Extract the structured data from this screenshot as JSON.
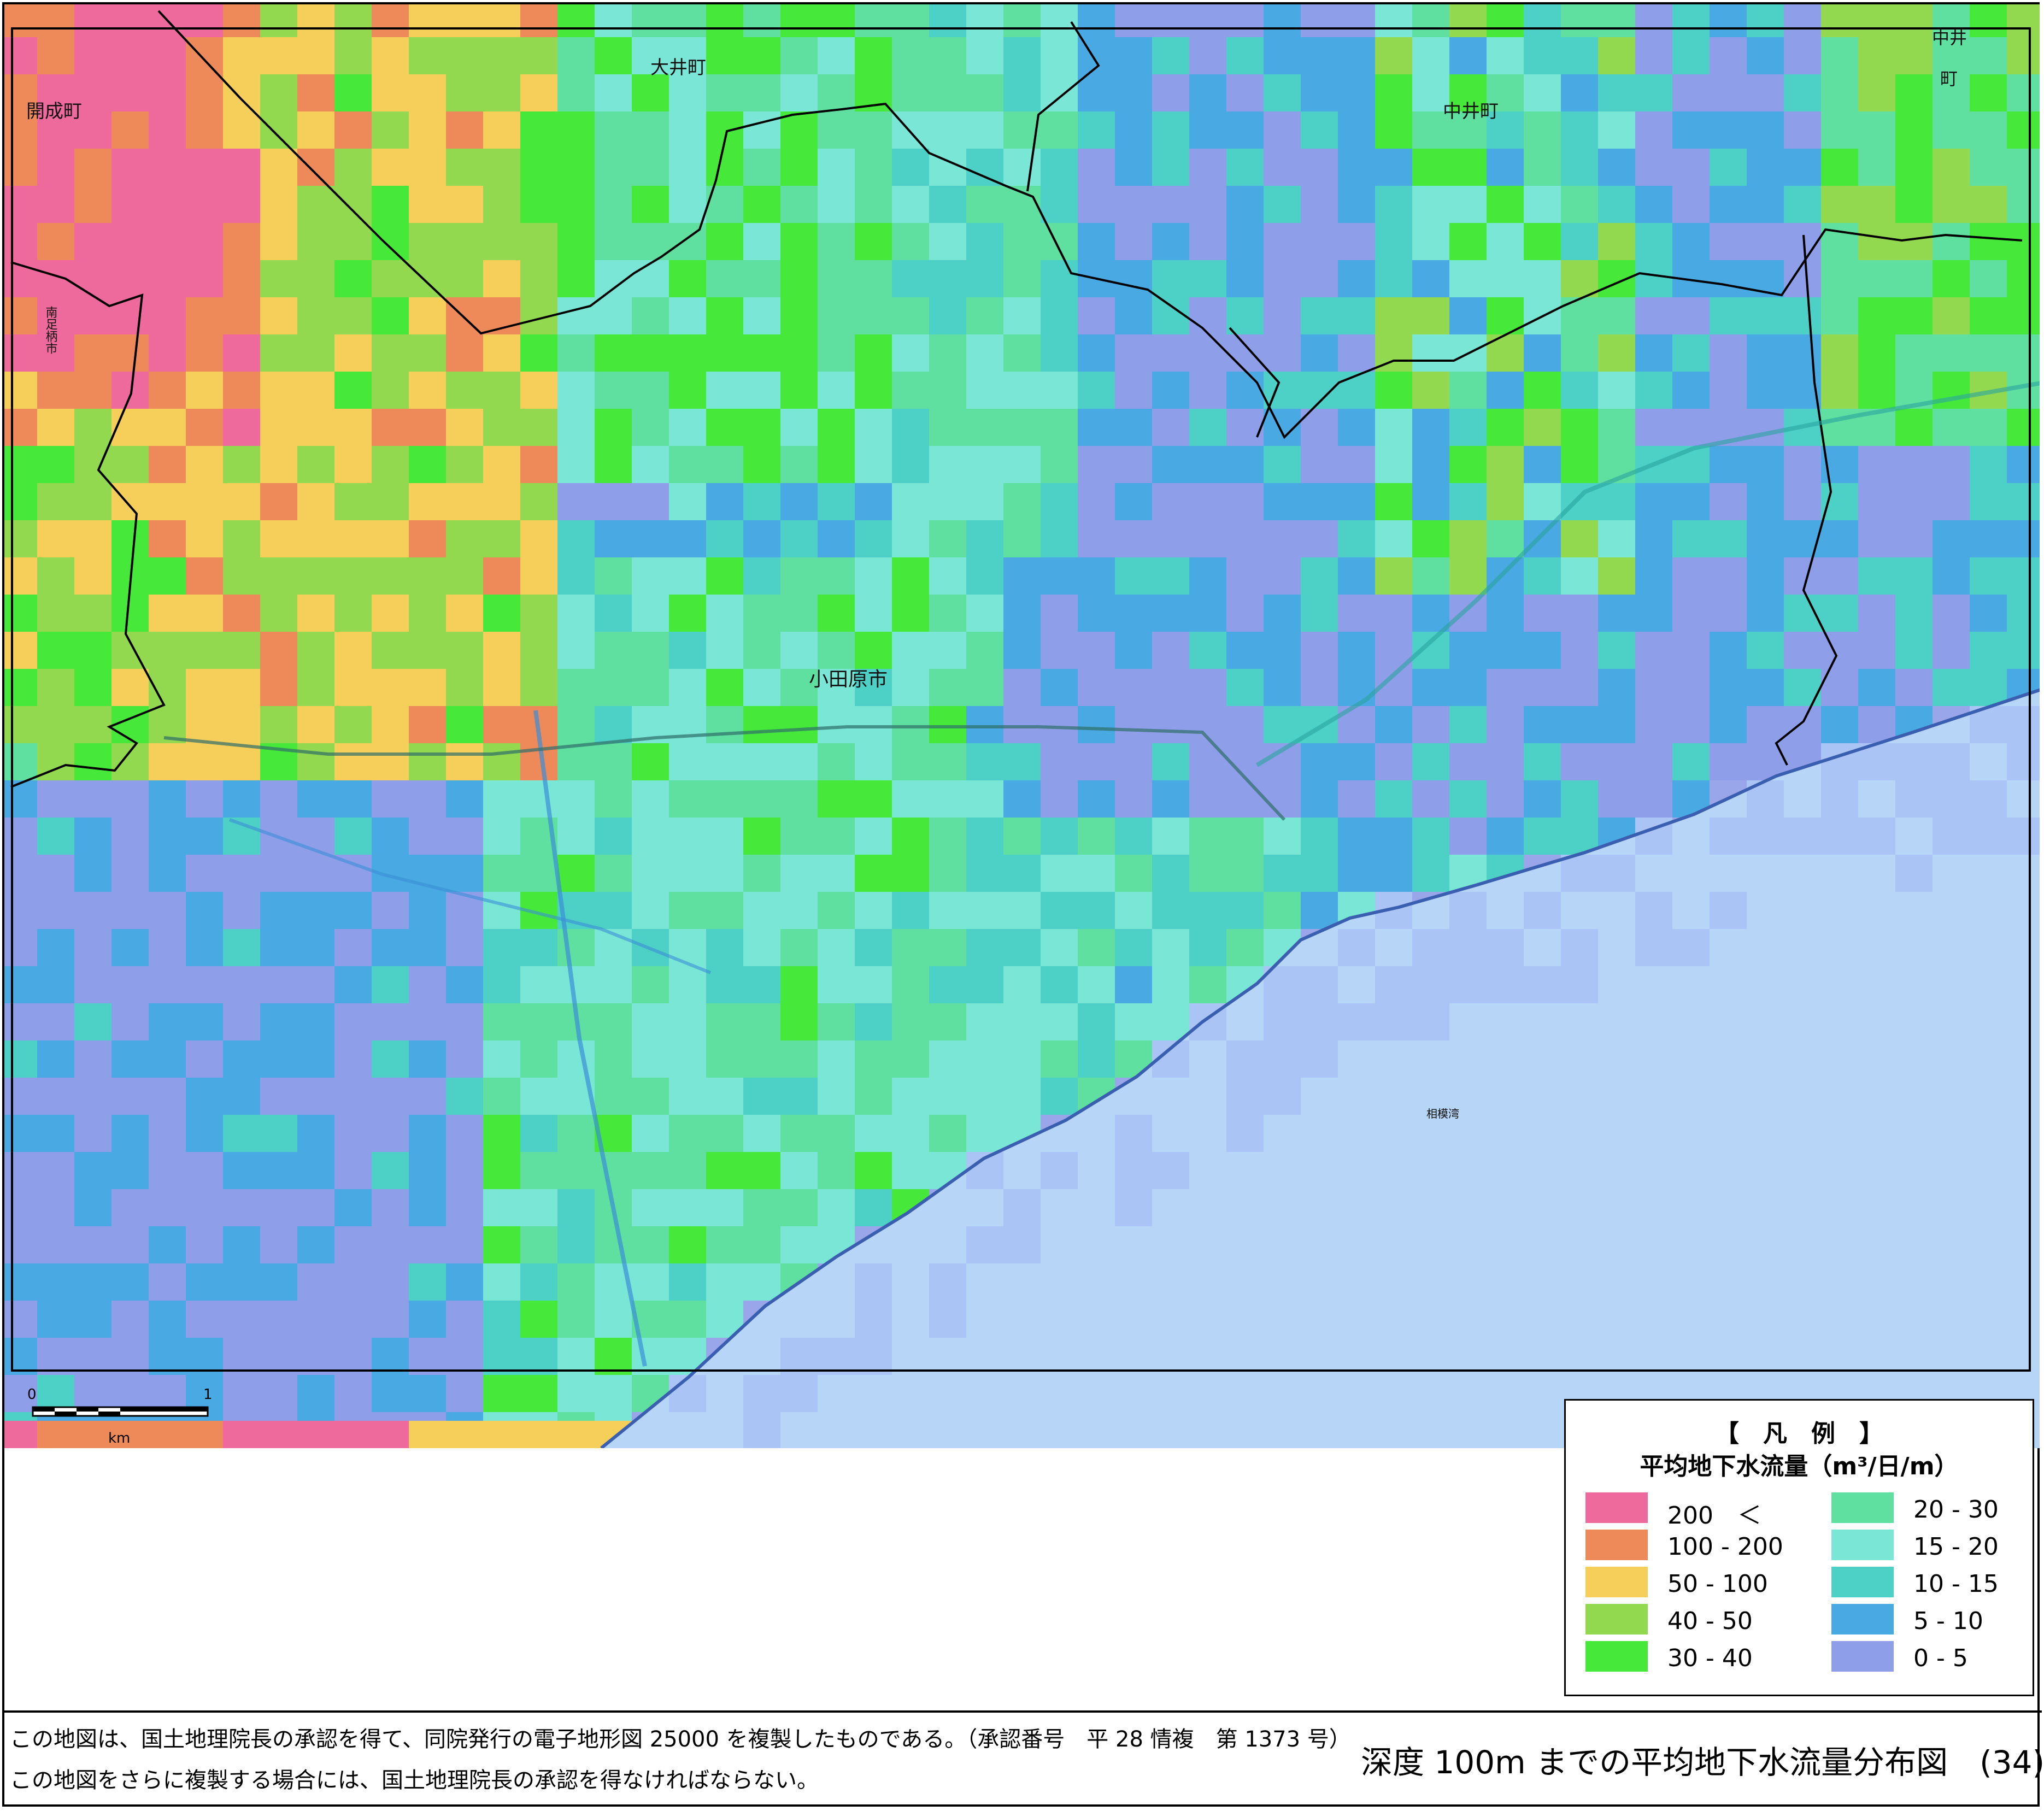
{
  "map": {
    "places": [
      "大井町",
      "中井町",
      "開成町",
      "小田原市",
      "南足柄市",
      "相模湾",
      "中井",
      "町"
    ],
    "scale_bar": {
      "start": "0",
      "end": "1",
      "unit": "km"
    }
  },
  "legend": {
    "title": "【　凡　例　】",
    "subtitle": "平均地下水流量（m³/日/m）",
    "classes": [
      {
        "label": "200　＜",
        "color": "#ef6a9c"
      },
      {
        "label": "100 - 200",
        "color": "#ee8a5a"
      },
      {
        "label": "50 - 100",
        "color": "#f6cf5a"
      },
      {
        "label": "40 - 50",
        "color": "#93d94f"
      },
      {
        "label": "30 - 40",
        "color": "#46e93a"
      },
      {
        "label": "20 - 30",
        "color": "#5fe0a0"
      },
      {
        "label": "15 - 20",
        "color": "#7ae6d6"
      },
      {
        "label": "10 - 15",
        "color": "#4dd0c6"
      },
      {
        "label": "5 - 10",
        "color": "#49a9e2"
      },
      {
        "label": "0 - 5",
        "color": "#8f9ee9"
      }
    ]
  },
  "footer": {
    "note1": "この地図は、国土地理院長の承認を得て、同院発行の電子地形図 25000 を複製したものである。（承認番号　平 28 情複　第 1373 号）",
    "note2": "この地図をさらに複製する場合には、国土地理院長の承認を得なければならない。",
    "title": "深度 100m までの平均地下水流量分布図　(34)"
  },
  "colors": {
    "sea": "#b7d5f7",
    "sea_grid": "#a9c4f5",
    "grid_line": "#000000"
  }
}
